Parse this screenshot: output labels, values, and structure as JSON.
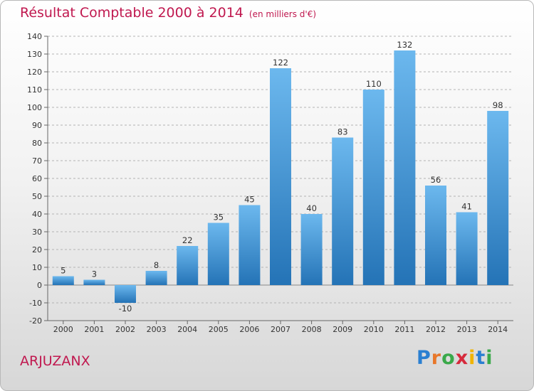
{
  "header": {
    "title": "Résultat Comptable 2000 à 2014",
    "unit": "(en milliers d'€)"
  },
  "footer": {
    "commune": "ARJUZANX",
    "logo_text": "Proxiti"
  },
  "colors": {
    "accent": "#c0184f",
    "bar": "#3a92d6",
    "bar_light": "#6cb8ee",
    "bar_dark": "#2473b6"
  },
  "chart_data": {
    "type": "bar",
    "title": "Résultat Comptable 2000 à 2014",
    "categories": [
      "2000",
      "2001",
      "2002",
      "2003",
      "2004",
      "2005",
      "2006",
      "2007",
      "2008",
      "2009",
      "2010",
      "2011",
      "2012",
      "2013",
      "2014"
    ],
    "values": [
      5,
      3,
      -10,
      8,
      22,
      35,
      45,
      122,
      40,
      83,
      110,
      132,
      56,
      41,
      98
    ],
    "ylim": [
      -20,
      140
    ],
    "yticks": [
      -20,
      -10,
      0,
      10,
      20,
      30,
      40,
      50,
      60,
      70,
      80,
      90,
      100,
      110,
      120,
      130,
      140
    ],
    "grid": true,
    "legend": "none"
  }
}
